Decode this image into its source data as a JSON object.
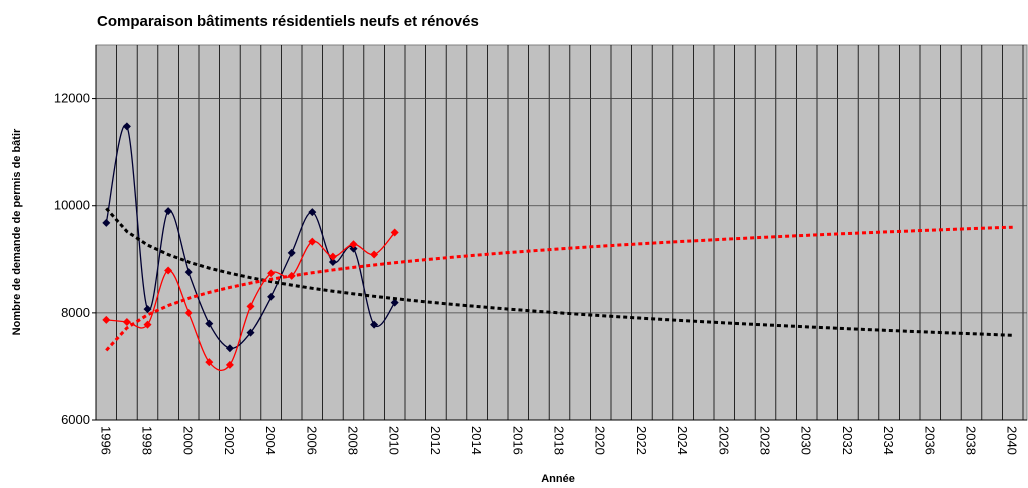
{
  "chart_data": {
    "type": "line",
    "title": "Comparaison bâtiments résidentiels neufs et rénovés",
    "y_label": "Nombre de demande de permis de bâtir",
    "x_label": "Année",
    "categories": [
      "1996",
      null,
      "1998",
      null,
      "2000",
      null,
      "2002",
      null,
      "2004",
      null,
      "2006",
      null,
      "2008",
      null,
      "2010",
      null,
      "2012",
      null,
      "2014",
      null,
      "2016",
      null,
      "2018",
      null,
      "2020",
      null,
      "2022",
      null,
      "2024",
      null,
      "2026",
      null,
      "2028",
      null,
      "2030",
      null,
      "2032",
      null,
      "2034",
      null,
      "2036",
      null,
      "2038",
      null,
      "2040"
    ],
    "ylim": [
      6000,
      13000
    ],
    "yticks": [
      6000,
      8000,
      10000,
      12000
    ],
    "grid": true,
    "background": "#c0c0c0",
    "series": [
      {
        "color": "#000033",
        "style": "smooth-markers",
        "values": [
          9680,
          11480,
          8070,
          9900,
          8760,
          7800,
          7340,
          7630,
          8300,
          9120,
          9880,
          8950,
          9200,
          7780,
          8190,
          null,
          null,
          null,
          null,
          null,
          null,
          null,
          null,
          null,
          null,
          null,
          null,
          null,
          null,
          null,
          null,
          null,
          null,
          null,
          null,
          null,
          null,
          null,
          null,
          null,
          null,
          null,
          null,
          null,
          null
        ]
      },
      {
        "color": "#ff0000",
        "style": "smooth-markers",
        "values": [
          7870,
          7830,
          7780,
          8790,
          8000,
          7080,
          7030,
          8120,
          8740,
          8690,
          9330,
          9050,
          9280,
          9090,
          9500,
          null,
          null,
          null,
          null,
          null,
          null,
          null,
          null,
          null,
          null,
          null,
          null,
          null,
          null,
          null,
          null,
          null,
          null,
          null,
          null,
          null,
          null,
          null,
          null,
          null,
          null,
          null,
          null,
          null,
          null
        ]
      },
      {
        "color": "#000000",
        "style": "dotted",
        "values": [
          9950,
          9519,
          9266,
          9088,
          8949,
          8835,
          8740,
          8657,
          8583,
          8518,
          8458,
          8404,
          8355,
          8309,
          8266,
          8225,
          8188,
          8152,
          8119,
          8086,
          8056,
          8027,
          8000,
          7973,
          7948,
          7924,
          7900,
          7877,
          7856,
          7835,
          7814,
          7794,
          7775,
          7757,
          7739,
          7721,
          7704,
          7687,
          7671,
          7655,
          7640,
          7625,
          7611,
          7596,
          7582
        ]
      },
      {
        "color": "#ff0000",
        "style": "dotted",
        "values": [
          7300,
          7719,
          7964,
          8137,
          8272,
          8382,
          8475,
          8556,
          8627,
          8691,
          8748,
          8801,
          8849,
          8894,
          8936,
          8975,
          9011,
          9046,
          9078,
          9110,
          9139,
          9167,
          9194,
          9220,
          9244,
          9268,
          9291,
          9313,
          9334,
          9354,
          9374,
          9393,
          9412,
          9430,
          9447,
          9465,
          9481,
          9497,
          9513,
          9528,
          9543,
          9558,
          9572,
          9586,
          9599
        ]
      }
    ]
  }
}
